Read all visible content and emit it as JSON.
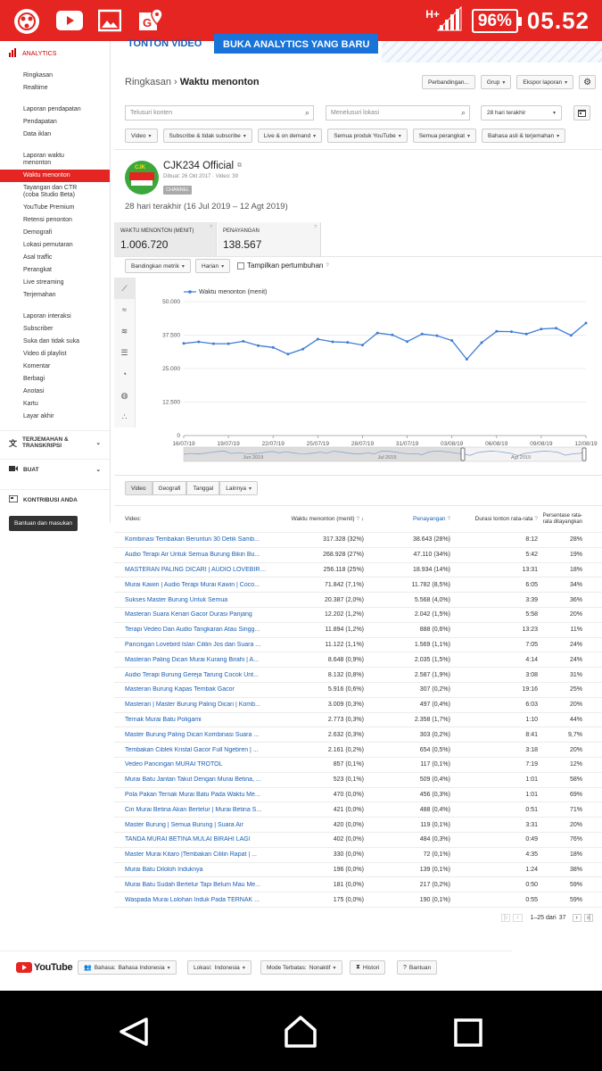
{
  "status_bar": {
    "network": "H+",
    "battery": "96%",
    "time": "05.52"
  },
  "banner": {
    "left_text": "TONTON VIDEO",
    "right_text": "BUKA ANALYTICS YANG BARU"
  },
  "sidebar": {
    "title": "ANALYTICS",
    "group1": [
      "Ringkasan",
      "Realtime"
    ],
    "group2": [
      "Laporan pendapatan",
      "Pendapatan",
      "Data iklan"
    ],
    "group3": [
      "Laporan waktu menonton",
      "Waktu menonton",
      "Tayangan dan CTR (coba Studio Beta)",
      "YouTube Premium",
      "Retensi penonton",
      "Demografi",
      "Lokasi pemutaran",
      "Asal traffic",
      "Perangkat",
      "Live streaming",
      "Terjemahan"
    ],
    "group4": [
      "Laporan interaksi",
      "Subscriber",
      "Suka dan tidak suka",
      "Video di playlist",
      "Komentar",
      "Berbagi",
      "Anotasi",
      "Kartu",
      "Layar akhir"
    ],
    "translate_label": "TERJEMAHAN & TRANSKRIPSI",
    "create_label": "BUAT",
    "contrib_label": "KONTRIBUSI ANDA",
    "feedback_button": "Bantuan dan masukan"
  },
  "header": {
    "crumb": "Ringkasan",
    "sep": "›",
    "title": "Waktu menonton",
    "compare": "Perbandingan...",
    "group": "Grup",
    "export": "Ekspor laporan"
  },
  "filters": {
    "search_content": "Telusuri konten",
    "search_location": "Menelusuri lokasi",
    "date_range": "28 hari terakhir",
    "chips": [
      "Video",
      "Subscribe & tidak subscribe",
      "Live & on demand",
      "Semua produk YouTube",
      "Semua perangkat",
      "Bahasa asli & terjemahan"
    ]
  },
  "channel": {
    "name": "CJK234 Official",
    "meta": "Dibuat: 26 Okt 2017 · Video: 39",
    "badge": "CHANNEL",
    "period": "28 hari terakhir (16 Jul 2019 – 12 Agt 2019)",
    "logo_text": "CJK"
  },
  "metrics": [
    {
      "label": "WAKTU MENONTON (MENIT)",
      "value": "1.006.720"
    },
    {
      "label": "PENAYANGAN",
      "value": "138.567"
    }
  ],
  "chart_controls": {
    "compare": "Bandingkan metrik",
    "interval": "Harian",
    "growth": "Tampilkan pertumbuhan"
  },
  "chart_data": {
    "type": "line",
    "series": [
      {
        "name": "Waktu menonton (menit)",
        "values": [
          34400,
          35000,
          34300,
          34300,
          35200,
          33600,
          32900,
          30400,
          32300,
          36000,
          35000,
          34800,
          33800,
          38300,
          37600,
          35100,
          37900,
          37300,
          35500,
          28500,
          34700,
          38900,
          38800,
          37900,
          39800,
          40100,
          37400,
          42000
        ]
      }
    ],
    "x_ticks": [
      "16/07/19",
      "19/07/19",
      "22/07/19",
      "25/07/19",
      "28/07/19",
      "31/07/19",
      "03/08/19",
      "06/08/19",
      "09/08/19",
      "12/08/19"
    ],
    "y_ticks": [
      "50.000",
      "37.500",
      "25.000",
      "12.500",
      "0"
    ],
    "ylim": [
      0,
      50000
    ],
    "overview_labels": [
      "Jun 2019",
      "Jul 2019",
      "Agt 2019"
    ],
    "color": "#3f7dd4"
  },
  "table": {
    "tabs": [
      "Video",
      "Geografi",
      "Tanggal",
      "Lainnya"
    ],
    "headers": {
      "video": "Video:",
      "watch": "Waktu menonton (menit)",
      "views": "Penayangan",
      "avg": "Durasi tonton rata-rata",
      "pct": "Persentase rata-rata ditayangkan"
    },
    "rows": [
      [
        "Kombinasi Tembakan Beruntun 30 Detik Samb...",
        "317.328 (32%)",
        "38.643 (28%)",
        "8:12",
        "28%"
      ],
      [
        "Audio Terapi Air Untuk Semua Burung Bikin Bu...",
        "268.928 (27%)",
        "47.110 (34%)",
        "5:42",
        "19%"
      ],
      [
        "MASTERAN PALING DICARI | AUDIO LOVEBIRD...",
        "256.118 (25%)",
        "18.934 (14%)",
        "13:31",
        "18%"
      ],
      [
        "Murai Kawin | Audio Terapi Murai Kawin | Coco...",
        "71.842 (7,1%)",
        "11.782 (8,5%)",
        "6:05",
        "34%"
      ],
      [
        "Sukses Master Burung Untuk Semua",
        "20.387 (2,0%)",
        "5.568 (4,0%)",
        "3:39",
        "36%"
      ],
      [
        "Masteran Suara Kenari Gacor Durasi Panjang",
        "12.202 (1,2%)",
        "2.042 (1,5%)",
        "5:58",
        "20%"
      ],
      [
        "Terapi Vedeo Dan Audio Tangkaran Atau Singg...",
        "11.894 (1,2%)",
        "888 (0,6%)",
        "13:23",
        "11%"
      ],
      [
        "Pancingan Lovebird Islan Cililin Jos dan Suara ...",
        "11.122 (1,1%)",
        "1.569 (1,1%)",
        "7:05",
        "24%"
      ],
      [
        "Masteran Paling Dicari Murai Kurang Birahi | A...",
        "8.648 (0,9%)",
        "2.035 (1,5%)",
        "4:14",
        "24%"
      ],
      [
        "Audio Terapi Burung Gereja Tarung Cocok Unt...",
        "8.132 (0,8%)",
        "2.587 (1,9%)",
        "3:08",
        "31%"
      ],
      [
        "Masteran Burung Kapas Tembak Gacor",
        "5.916 (0,6%)",
        "307 (0,2%)",
        "19:16",
        "25%"
      ],
      [
        "Masteran | Master Burung Paling Dicari | Komb...",
        "3.009 (0,3%)",
        "497 (0,4%)",
        "6:03",
        "20%"
      ],
      [
        "Ternak Murai Batu Poligami",
        "2.773 (0,3%)",
        "2.358 (1,7%)",
        "1:10",
        "44%"
      ],
      [
        "Master Burung Paling Dicari Kombinasi Suara ...",
        "2.632 (0,3%)",
        "303 (0,2%)",
        "8:41",
        "9,7%"
      ],
      [
        "Tembakan Ciblek Kristal Gacor Full Ngebren | ...",
        "2.161 (0,2%)",
        "654 (0,5%)",
        "3:18",
        "20%"
      ],
      [
        "Vedeo Pancingan MURAI TROTOL",
        "857 (0,1%)",
        "117 (0,1%)",
        "7:19",
        "12%"
      ],
      [
        "Murai Batu Jantan Takut Dengan Murai Betina, ...",
        "523 (0,1%)",
        "509 (0,4%)",
        "1:01",
        "58%"
      ],
      [
        "Pola Pakan Ternak Murai Batu Pada Waktu Me...",
        "470 (0,0%)",
        "456 (0,3%)",
        "1:01",
        "69%"
      ],
      [
        "Ciri Murai Betina Akan Bertelur | Murai Betina S...",
        "421 (0,0%)",
        "488 (0,4%)",
        "0:51",
        "71%"
      ],
      [
        "Master Burung | Semua Burung | Suara Air",
        "420 (0,0%)",
        "119 (0,1%)",
        "3:31",
        "20%"
      ],
      [
        "TANDA MURAI BETINA MULAI BIRAHI LAGI",
        "402 (0,0%)",
        "484 (0,3%)",
        "0:49",
        "76%"
      ],
      [
        "Master Murai Kitaro |Tembakan Cililin Rapat | ...",
        "330 (0,0%)",
        "72 (0,1%)",
        "4:35",
        "18%"
      ],
      [
        "Murai Batu Diloloh Induknya",
        "196 (0,0%)",
        "139 (0,1%)",
        "1:24",
        "38%"
      ],
      [
        "Murai Batu Sudah Bertelur Tapi Belum Mau Me...",
        "181 (0,0%)",
        "217 (0,2%)",
        "0:50",
        "59%"
      ],
      [
        "Waspada Murai Lolohan Induk Pada TERNAK ...",
        "175 (0,0%)",
        "190 (0,1%)",
        "0:55",
        "59%"
      ]
    ],
    "pagination": "1–25 dari",
    "total": "37"
  },
  "footer": {
    "brand": "YouTube",
    "language_label": "Bahasa:",
    "language_value": "Bahasa Indonesia",
    "location_label": "Lokasi:",
    "location_value": "Indonesia",
    "restricted_label": "Mode Terbatas:",
    "restricted_value": "Nonaktif",
    "history": "Histori",
    "help": "Bantuan"
  }
}
